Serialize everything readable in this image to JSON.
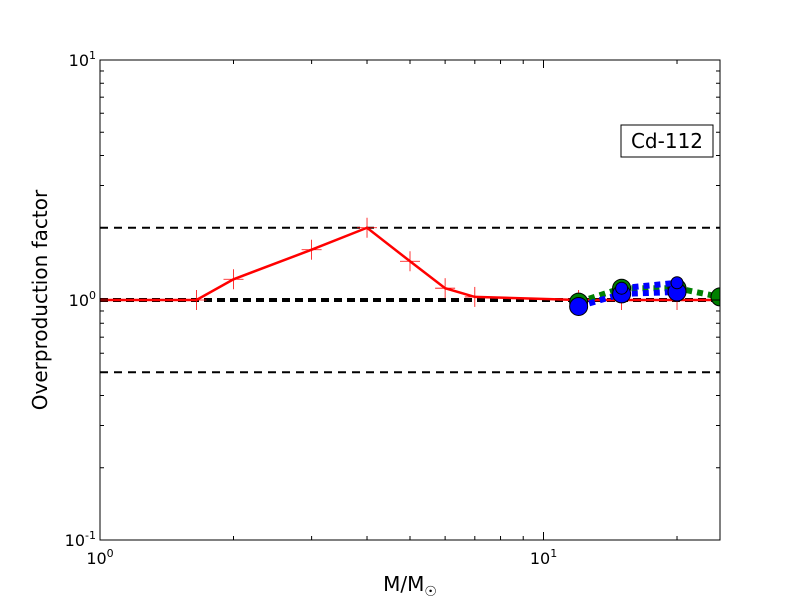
{
  "chart_data": {
    "type": "line",
    "title": "",
    "xlabel": "M/M☉",
    "ylabel": "Overproduction factor",
    "annotation": "Cd-112",
    "xscale": "log",
    "yscale": "log",
    "xlim": [
      1,
      25
    ],
    "ylim": [
      0.1,
      10
    ],
    "x_ticks": [
      {
        "value": 1,
        "base": "10",
        "exp": "0"
      },
      {
        "value": 10,
        "base": "10",
        "exp": "1"
      }
    ],
    "y_ticks": [
      {
        "value": 0.1,
        "base": "10",
        "exp": "-1"
      },
      {
        "value": 1,
        "base": "10",
        "exp": "0"
      },
      {
        "value": 10,
        "base": "10",
        "exp": "1"
      }
    ],
    "reference_lines": [
      {
        "y": 2.0,
        "style": "dashed",
        "weight": "thin"
      },
      {
        "y": 1.0,
        "style": "dashed",
        "weight": "thick"
      },
      {
        "y": 0.5,
        "style": "dashed",
        "weight": "thin"
      }
    ],
    "series": [
      {
        "color": "#ff0000",
        "line": "solid",
        "marker": "plus",
        "x": [
          1.0,
          1.65,
          2.0,
          3.0,
          4.0,
          5.0,
          6.0,
          7.0,
          12.0,
          15.0,
          20.0,
          25.0
        ],
        "y": [
          1.0,
          1.0,
          1.22,
          1.62,
          2.0,
          1.45,
          1.12,
          1.03,
          1.0,
          1.0,
          1.0,
          1.0
        ],
        "marker_x": [
          1.65,
          2.0,
          3.0,
          4.0,
          5.0,
          6.0,
          7.0,
          12.0,
          15.0,
          20.0,
          25.0
        ]
      },
      {
        "color": "#008000",
        "line": "dotted",
        "marker": "circle",
        "x": [
          12.0,
          15.0,
          20.0,
          25.0
        ],
        "y": [
          0.98,
          1.12,
          1.12,
          1.03
        ]
      },
      {
        "color": "#0000ff",
        "line": "dotted",
        "marker": "circle",
        "x": [
          12.0,
          15.0,
          20.0
        ],
        "y": [
          0.94,
          1.06,
          1.08
        ]
      },
      {
        "color": "#0000ff",
        "line": "dotted",
        "marker": "circle-small",
        "x": [
          15.0,
          20.0
        ],
        "y": [
          1.12,
          1.18
        ]
      }
    ],
    "grid": false,
    "legend": "none"
  }
}
